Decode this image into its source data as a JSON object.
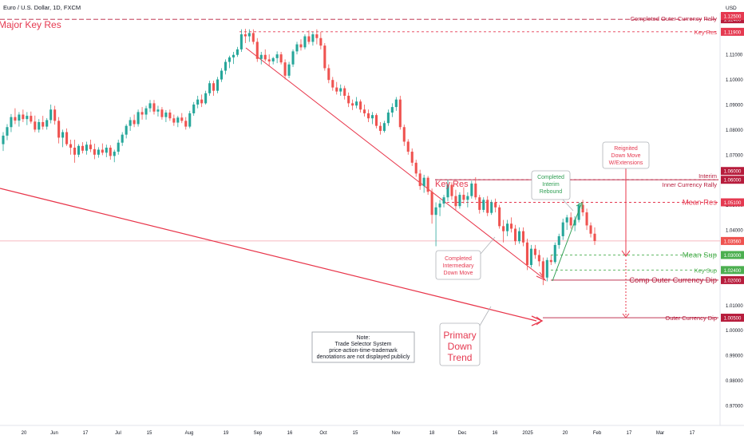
{
  "chart_data": {
    "type": "candlestick",
    "symbol": "Euro / U.S. Dollar, 1D, FXCM",
    "currency": "USD",
    "y_scale": {
      "top": 1.125,
      "bottom": 0.97
    },
    "price_ticks": [
      "1.12500",
      "1.11000",
      "1.10000",
      "1.09000",
      "1.08000",
      "1.07000",
      "1.06000",
      "1.05000",
      "1.04000",
      "1.03000",
      "1.02000",
      "1.01000",
      "1.00000",
      "0.99000",
      "0.98000",
      "0.97000"
    ],
    "x_ticks": [
      "20",
      "Jun",
      "17",
      "Jul",
      "15",
      "Aug",
      "19",
      "Sep",
      "16",
      "Oct",
      "15",
      "Nov",
      "18",
      "Dec",
      "16",
      "2025",
      "20",
      "Feb",
      "17",
      "Mar",
      "17"
    ],
    "colors": {
      "up": "#26a69a",
      "down": "#ef5350",
      "resistance": "#e53950",
      "support": "#4caf50",
      "dark_red": "#b71c3c",
      "trend": "#e8354a"
    },
    "candles": [
      [
        1.0742,
        1.079,
        1.0715,
        1.0776
      ],
      [
        1.0776,
        1.0822,
        1.0758,
        1.081
      ],
      [
        1.081,
        1.0862,
        1.079,
        1.085
      ],
      [
        1.085,
        1.0885,
        1.0822,
        1.0836
      ],
      [
        1.0836,
        1.087,
        1.0812,
        1.086
      ],
      [
        1.086,
        1.088,
        1.083,
        1.0842
      ],
      [
        1.0842,
        1.087,
        1.0818,
        1.0855
      ],
      [
        1.0855,
        1.0872,
        1.0824,
        1.0832
      ],
      [
        1.0832,
        1.0856,
        1.079,
        1.08
      ],
      [
        1.08,
        1.0842,
        1.0788,
        1.083
      ],
      [
        1.083,
        1.0855,
        1.08,
        1.0812
      ],
      [
        1.0812,
        1.0846,
        1.08,
        1.0838
      ],
      [
        1.0838,
        1.09,
        1.0825,
        1.088
      ],
      [
        1.088,
        1.0895,
        1.082,
        1.0835
      ],
      [
        1.0835,
        1.085,
        1.0745,
        1.0768
      ],
      [
        1.0768,
        1.08,
        1.073,
        1.079
      ],
      [
        1.079,
        1.0805,
        1.0735,
        1.0742
      ],
      [
        1.0742,
        1.076,
        1.07,
        1.0728
      ],
      [
        1.0728,
        1.076,
        1.0668,
        1.07
      ],
      [
        1.07,
        1.0742,
        1.069,
        1.0735
      ],
      [
        1.0735,
        1.075,
        1.0705,
        1.0716
      ],
      [
        1.0716,
        1.0752,
        1.07,
        1.074
      ],
      [
        1.074,
        1.076,
        1.071,
        1.0722
      ],
      [
        1.0722,
        1.0744,
        1.0682,
        1.07
      ],
      [
        1.07,
        1.073,
        1.0688,
        1.072
      ],
      [
        1.072,
        1.0745,
        1.0698,
        1.0708
      ],
      [
        1.0708,
        1.074,
        1.069,
        1.0728
      ],
      [
        1.0728,
        1.0738,
        1.068,
        1.0695
      ],
      [
        1.0695,
        1.072,
        1.067,
        1.0712
      ],
      [
        1.0712,
        1.076,
        1.07,
        1.0748
      ],
      [
        1.0748,
        1.079,
        1.0735,
        1.078
      ],
      [
        1.078,
        1.0822,
        1.0765,
        1.0815
      ],
      [
        1.0815,
        1.085,
        1.0795,
        1.0838
      ],
      [
        1.0838,
        1.086,
        1.081,
        1.0822
      ],
      [
        1.0822,
        1.088,
        1.0812,
        1.087
      ],
      [
        1.087,
        1.089,
        1.084,
        1.086
      ],
      [
        1.086,
        1.0895,
        1.084,
        1.0885
      ],
      [
        1.0885,
        1.0918,
        1.087,
        1.0905
      ],
      [
        1.0905,
        1.0918,
        1.086,
        1.0872
      ],
      [
        1.0872,
        1.0895,
        1.0852,
        1.088
      ],
      [
        1.088,
        1.089,
        1.084,
        1.085
      ],
      [
        1.085,
        1.0878,
        1.083,
        1.0868
      ],
      [
        1.0868,
        1.088,
        1.0835,
        1.0845
      ],
      [
        1.0845,
        1.086,
        1.0815,
        1.0828
      ],
      [
        1.0828,
        1.0855,
        1.081,
        1.0848
      ],
      [
        1.0848,
        1.0866,
        1.0826,
        1.0835
      ],
      [
        1.0835,
        1.085,
        1.08,
        1.0812
      ],
      [
        1.0812,
        1.0875,
        1.0805,
        1.0865
      ],
      [
        1.0865,
        1.091,
        1.0855,
        1.09
      ],
      [
        1.09,
        1.0935,
        1.0885,
        1.092
      ],
      [
        1.092,
        1.094,
        1.089,
        1.0905
      ],
      [
        1.0905,
        1.0955,
        1.09,
        1.0945
      ],
      [
        1.0945,
        1.0995,
        1.0935,
        1.0985
      ],
      [
        1.0985,
        1.0995,
        1.0935,
        1.0955
      ],
      [
        1.0955,
        1.101,
        1.0945,
        1.1
      ],
      [
        1.1,
        1.1045,
        1.099,
        1.1035
      ],
      [
        1.1035,
        1.108,
        1.102,
        1.107
      ],
      [
        1.107,
        1.1095,
        1.1045,
        1.1088
      ],
      [
        1.1088,
        1.111,
        1.1062,
        1.1098
      ],
      [
        1.1098,
        1.113,
        1.109,
        1.112
      ],
      [
        1.112,
        1.12,
        1.111,
        1.118
      ],
      [
        1.118,
        1.1202,
        1.1145,
        1.1172
      ],
      [
        1.1172,
        1.12,
        1.115,
        1.1185
      ],
      [
        1.1185,
        1.12,
        1.114,
        1.115
      ],
      [
        1.115,
        1.1165,
        1.107,
        1.1082
      ],
      [
        1.1082,
        1.111,
        1.106,
        1.1098
      ],
      [
        1.1098,
        1.112,
        1.1072,
        1.108
      ],
      [
        1.108,
        1.11,
        1.1055,
        1.1072
      ],
      [
        1.1072,
        1.109,
        1.106,
        1.1085
      ],
      [
        1.1085,
        1.1112,
        1.1065,
        1.11
      ],
      [
        1.11,
        1.111,
        1.106,
        1.1068
      ],
      [
        1.1068,
        1.108,
        1.1,
        1.1015
      ],
      [
        1.1015,
        1.107,
        1.1005,
        1.106
      ],
      [
        1.106,
        1.112,
        1.105,
        1.1112
      ],
      [
        1.1112,
        1.115,
        1.11,
        1.114
      ],
      [
        1.114,
        1.116,
        1.1115,
        1.1128
      ],
      [
        1.1128,
        1.118,
        1.112,
        1.1172
      ],
      [
        1.1172,
        1.1195,
        1.114,
        1.115
      ],
      [
        1.115,
        1.119,
        1.1135,
        1.118
      ],
      [
        1.118,
        1.12,
        1.114,
        1.1165
      ],
      [
        1.1165,
        1.119,
        1.112,
        1.1135
      ],
      [
        1.1135,
        1.1145,
        1.1035,
        1.1045
      ],
      [
        1.1045,
        1.106,
        1.0985,
        1.0998
      ],
      [
        1.0998,
        1.101,
        1.0955,
        1.0968
      ],
      [
        1.0968,
        1.099,
        1.094,
        1.0952
      ],
      [
        1.0952,
        1.098,
        1.0935,
        1.0965
      ],
      [
        1.0965,
        1.0975,
        1.092,
        1.0935
      ],
      [
        1.0935,
        1.0948,
        1.089,
        1.0905
      ],
      [
        1.0905,
        1.092,
        1.0878,
        1.0896
      ],
      [
        1.0896,
        1.093,
        1.0885,
        1.0912
      ],
      [
        1.0912,
        1.092,
        1.0868,
        1.088
      ],
      [
        1.088,
        1.09,
        1.0852,
        1.0865
      ],
      [
        1.0865,
        1.088,
        1.083,
        1.0845
      ],
      [
        1.0845,
        1.087,
        1.0822,
        1.0858
      ],
      [
        1.0858,
        1.0865,
        1.0805,
        1.0815
      ],
      [
        1.0815,
        1.083,
        1.078,
        1.0795
      ],
      [
        1.0795,
        1.0835,
        1.0788,
        1.0826
      ],
      [
        1.0826,
        1.088,
        1.0815,
        1.0868
      ],
      [
        1.0868,
        1.0905,
        1.085,
        1.089
      ],
      [
        1.089,
        1.093,
        1.0875,
        1.092
      ],
      [
        1.092,
        1.0935,
        1.08,
        1.081
      ],
      [
        1.081,
        1.082,
        1.0735,
        1.0752
      ],
      [
        1.0752,
        1.0762,
        1.07,
        1.0712
      ],
      [
        1.0712,
        1.0725,
        1.0655,
        1.0668
      ],
      [
        1.0668,
        1.068,
        1.0612,
        1.0625
      ],
      [
        1.0625,
        1.064,
        1.056,
        1.0575
      ],
      [
        1.0575,
        1.062,
        1.0548,
        1.0608
      ],
      [
        1.0608,
        1.0615,
        1.054,
        1.0552
      ],
      [
        1.0552,
        1.0565,
        1.0425,
        1.046
      ],
      [
        1.046,
        1.051,
        1.0335,
        1.049
      ],
      [
        1.049,
        1.052,
        1.0455,
        1.0505
      ],
      [
        1.0505,
        1.054,
        1.049,
        1.053
      ],
      [
        1.053,
        1.06,
        1.0515,
        1.058
      ],
      [
        1.058,
        1.059,
        1.052,
        1.0535
      ],
      [
        1.0535,
        1.056,
        1.048,
        1.0495
      ],
      [
        1.0495,
        1.055,
        1.0485,
        1.054
      ],
      [
        1.054,
        1.057,
        1.0505,
        1.052
      ],
      [
        1.052,
        1.055,
        1.049,
        1.0535
      ],
      [
        1.0535,
        1.0596,
        1.0525,
        1.0585
      ],
      [
        1.0585,
        1.061,
        1.052,
        1.053
      ],
      [
        1.053,
        1.054,
        1.0465,
        1.048
      ],
      [
        1.048,
        1.053,
        1.047,
        1.052
      ],
      [
        1.052,
        1.0535,
        1.0455,
        1.0468
      ],
      [
        1.0468,
        1.052,
        1.046,
        1.051
      ],
      [
        1.051,
        1.0525,
        1.047,
        1.049
      ],
      [
        1.049,
        1.05,
        1.0405,
        1.0415
      ],
      [
        1.0415,
        1.044,
        1.035,
        1.0395
      ],
      [
        1.0395,
        1.044,
        1.0375,
        1.0425
      ],
      [
        1.0425,
        1.045,
        1.039,
        1.0405
      ],
      [
        1.0405,
        1.042,
        1.034,
        1.0355
      ],
      [
        1.0355,
        1.041,
        1.0345,
        1.0395
      ],
      [
        1.0395,
        1.041,
        1.0335,
        1.035
      ],
      [
        1.035,
        1.0365,
        1.024,
        1.026
      ],
      [
        1.026,
        1.034,
        1.025,
        1.0325
      ],
      [
        1.0325,
        1.034,
        1.0285,
        1.03
      ],
      [
        1.03,
        1.032,
        1.0255,
        1.0275
      ],
      [
        1.0275,
        1.029,
        1.018,
        1.021
      ],
      [
        1.021,
        1.029,
        1.0195,
        1.028
      ],
      [
        1.028,
        1.03,
        1.026,
        1.0272
      ],
      [
        1.0272,
        1.035,
        1.0265,
        1.034
      ],
      [
        1.034,
        1.0385,
        1.0325,
        1.0375
      ],
      [
        1.0375,
        1.0445,
        1.036,
        1.043
      ],
      [
        1.043,
        1.046,
        1.04,
        1.045
      ],
      [
        1.045,
        1.047,
        1.0405,
        1.0418
      ],
      [
        1.0418,
        1.0455,
        1.0395,
        1.044
      ],
      [
        1.044,
        1.051,
        1.043,
        1.05
      ],
      [
        1.05,
        1.052,
        1.0455,
        1.047
      ],
      [
        1.047,
        1.0485,
        1.04,
        1.0418
      ],
      [
        1.0418,
        1.043,
        1.037,
        1.0385
      ],
      [
        1.0385,
        1.041,
        1.034,
        1.0356
      ]
    ],
    "horizontal_levels": [
      {
        "label": "Completed Outer Currency Rally",
        "price": 1.124,
        "badge": "1.12400",
        "color": "#b71c3c",
        "style": "dashed"
      },
      {
        "label": "Key Res",
        "price": 1.119,
        "badge": "1.11900",
        "color": "#e53950",
        "style": "dotted"
      },
      {
        "label": "Interim",
        "price": 1.06,
        "badge": "1.06000",
        "color": "#b71c3c",
        "style": "solid"
      },
      {
        "label": "Inner Currency Rally",
        "price": 1.06,
        "badge": "1.06000",
        "color": "#b71c3c",
        "style": "dotted"
      },
      {
        "label": "Mean Res",
        "price": 1.051,
        "badge": "1.05100",
        "color": "#e53950",
        "style": "dotted"
      },
      {
        "label": "Mean Sup",
        "price": 1.03,
        "badge": "1.03000",
        "color": "#4caf50",
        "style": "dotted"
      },
      {
        "label": "Key Sup",
        "price": 1.024,
        "badge": "1.02400",
        "color": "#4caf50",
        "style": "dotted"
      },
      {
        "label": "Comp Outer Currency Dip",
        "price": 1.02,
        "badge": "1.02000",
        "color": "#b71c3c",
        "style": "solid"
      },
      {
        "label": "Outer Currency Dip",
        "price": 1.005,
        "badge": "1.00500",
        "color": "#b71c3c",
        "style": "solid"
      }
    ],
    "last_price": {
      "value": 1.0356,
      "badge": "1.03560"
    },
    "top_badge": "1.12500",
    "titles": {
      "major_key_res": "Major Key Res",
      "key_res_mid": "Key Res"
    },
    "callouts": {
      "completed_interim_rebound": [
        "Completed",
        "Interim",
        "Rebound"
      ],
      "reignited": [
        "Reignited",
        "Down Move",
        "W/Extensions"
      ],
      "completed_intermediary": [
        "Completed",
        "Intermediary",
        "Down Move"
      ],
      "primary_trend": [
        "Primary",
        "Down",
        "Trend"
      ],
      "note": [
        "Note:",
        "Trade Selector System",
        "price-action-time-trademark",
        "denotations are not displayed publicly"
      ]
    }
  }
}
